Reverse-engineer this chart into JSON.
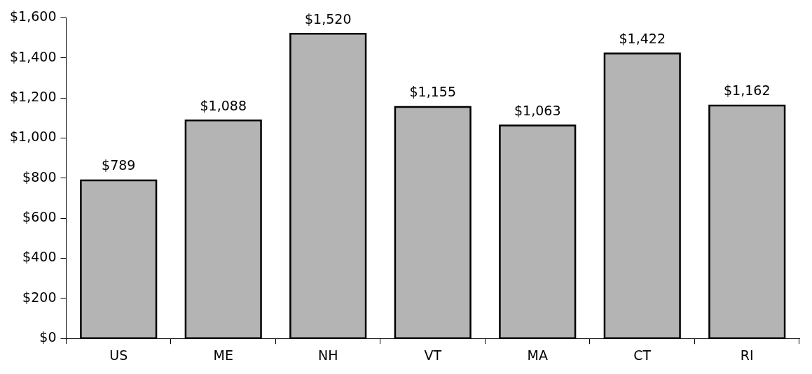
{
  "chart_data": {
    "type": "bar",
    "categories": [
      "US",
      "ME",
      "NH",
      "VT",
      "MA",
      "CT",
      "RI"
    ],
    "values": [
      789,
      1088,
      1520,
      1155,
      1063,
      1422,
      1162
    ],
    "value_labels": [
      "$789",
      "$1,088",
      "$1,520",
      "$1,155",
      "$1,063",
      "$1,422",
      "$1,162"
    ],
    "color": "#b4b4b4",
    "ylim": [
      0,
      1600
    ],
    "yticks": [
      {
        "value": 0,
        "label": "$0"
      },
      {
        "value": 200,
        "label": "$200"
      },
      {
        "value": 400,
        "label": "$400"
      },
      {
        "value": 600,
        "label": "$600"
      },
      {
        "value": 800,
        "label": "$800"
      },
      {
        "value": 1000,
        "label": "$1,000"
      },
      {
        "value": 1200,
        "label": "$1,200"
      },
      {
        "value": 1400,
        "label": "$1,400"
      },
      {
        "value": 1600,
        "label": "$1,600"
      }
    ],
    "grid": false,
    "legend": false
  }
}
